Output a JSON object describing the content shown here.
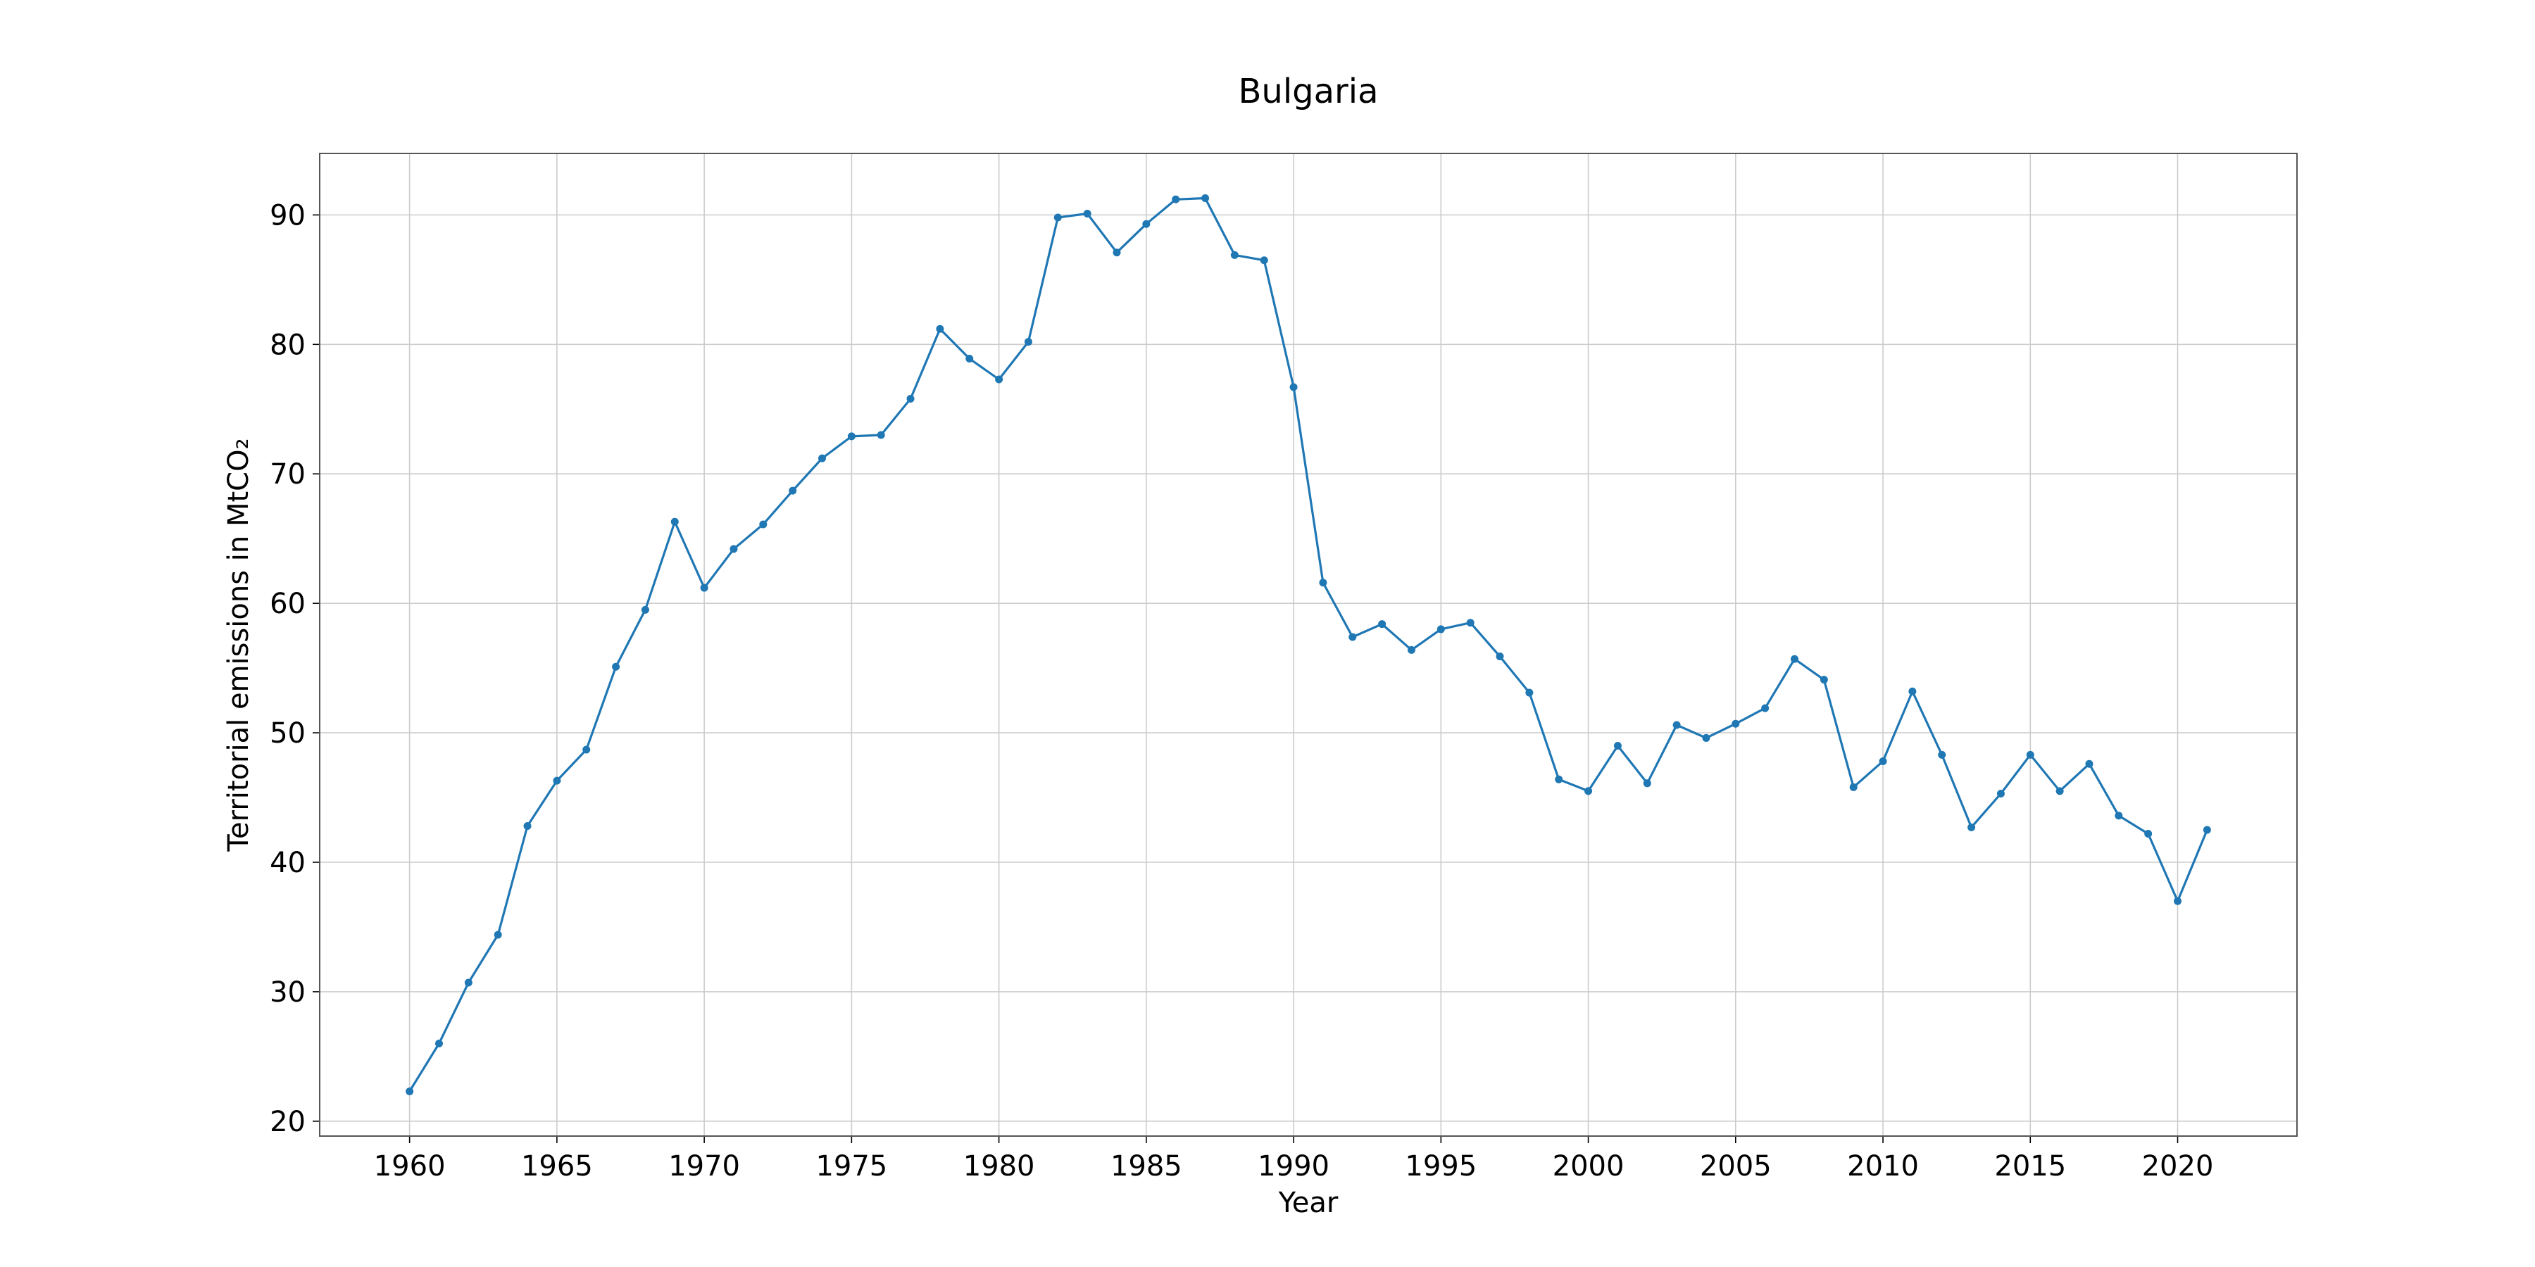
{
  "chart_data": {
    "type": "line",
    "title": "Bulgaria",
    "xlabel": "Year",
    "ylabel": "Territorial emissions in MtCO₂",
    "xlim": [
      1956.95,
      2024.05
    ],
    "ylim": [
      18.85,
      94.75
    ],
    "x_ticks": [
      1960,
      1965,
      1970,
      1975,
      1980,
      1985,
      1990,
      1995,
      2000,
      2005,
      2010,
      2015,
      2020
    ],
    "y_ticks": [
      20,
      30,
      40,
      50,
      60,
      70,
      80,
      90
    ],
    "grid": true,
    "legend": "none",
    "line_color": "#1f77b4",
    "series": [
      {
        "x": [
          1960,
          1961,
          1962,
          1963,
          1964,
          1965,
          1966,
          1967,
          1968,
          1969,
          1970,
          1971,
          1972,
          1973,
          1974,
          1975,
          1976,
          1977,
          1978,
          1979,
          1980,
          1981,
          1982,
          1983,
          1984,
          1985,
          1986,
          1987,
          1988,
          1989,
          1990,
          1991,
          1992,
          1993,
          1994,
          1995,
          1996,
          1997,
          1998,
          1999,
          2000,
          2001,
          2002,
          2003,
          2004,
          2005,
          2006,
          2007,
          2008,
          2009,
          2010,
          2011,
          2012,
          2013,
          2014,
          2015,
          2016,
          2017,
          2018,
          2019,
          2020,
          2021
        ],
        "values": [
          22.3,
          26.0,
          30.7,
          34.4,
          42.8,
          46.3,
          48.7,
          55.1,
          59.5,
          66.3,
          61.2,
          64.2,
          66.1,
          68.7,
          71.2,
          72.9,
          73.0,
          75.8,
          81.2,
          78.9,
          77.3,
          80.2,
          89.8,
          90.1,
          87.1,
          89.3,
          91.2,
          91.3,
          86.9,
          86.5,
          76.7,
          61.6,
          57.4,
          58.4,
          56.4,
          58.0,
          58.5,
          55.9,
          53.1,
          46.4,
          45.5,
          49.0,
          46.1,
          50.6,
          49.6,
          50.7,
          51.9,
          55.7,
          54.1,
          45.8,
          47.8,
          53.2,
          48.3,
          42.7,
          45.3,
          48.3,
          45.5,
          47.6,
          43.6,
          42.2,
          37.0,
          42.5
        ]
      }
    ]
  }
}
